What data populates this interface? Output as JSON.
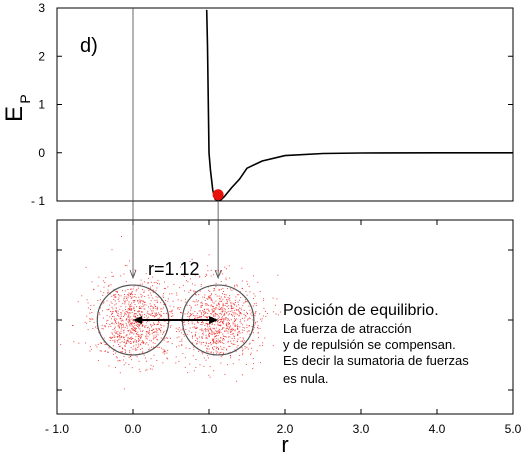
{
  "chart_data": [
    {
      "type": "line",
      "panel_label": "d)",
      "ylabel": "E",
      "ylabel_sub": "P",
      "xlim": [
        -1.0,
        5.0
      ],
      "ylim": [
        -1,
        3
      ],
      "yticks": [
        -1,
        0,
        1,
        2,
        3
      ],
      "ytick_labels": [
        "- 1",
        "0",
        "1",
        "2",
        "3"
      ],
      "series": [
        {
          "curve": "lennard-jones",
          "x": [
            0.97,
            0.98,
            1.0,
            1.02,
            1.05,
            1.08,
            1.12,
            1.16,
            1.2,
            1.3,
            1.4,
            1.5,
            1.7,
            2.0,
            2.5,
            3.0,
            4.0,
            5.0
          ],
          "y": [
            2.96,
            2.22,
            0.0,
            -0.37,
            -0.78,
            -0.96,
            -1.0,
            -0.97,
            -0.91,
            -0.72,
            -0.55,
            -0.32,
            -0.17,
            -0.06,
            -0.016,
            -0.005,
            -0.001,
            0.0
          ],
          "color": "#000000"
        }
      ],
      "marker": {
        "x": 1.12,
        "y": -0.87,
        "color": "#e8120c"
      },
      "grid": false
    },
    {
      "type": "scatter",
      "xlabel": "r",
      "xlim": [
        -1.0,
        5.0
      ],
      "xticks": [
        -1.0,
        0.0,
        1.0,
        2.0,
        3.0,
        4.0,
        5.0
      ],
      "xtick_labels": [
        "- 1.0",
        "0.0",
        "1.0",
        "2.0",
        "3.0",
        "4.0",
        "5.0"
      ],
      "particles": [
        {
          "center_x": 0.0,
          "radius": 0.5,
          "color": "#e8120c"
        },
        {
          "center_x": 1.12,
          "radius": 0.5,
          "color": "#e8120c"
        }
      ],
      "separation_label": "r=1.12",
      "annotation": {
        "title": "Posición de equilibrio.",
        "lines": [
          "La fuerza de atracción",
          "y de repulsión se compensan.",
          "Es decir la sumatoria de fuerzas",
          "es nula."
        ]
      }
    }
  ]
}
